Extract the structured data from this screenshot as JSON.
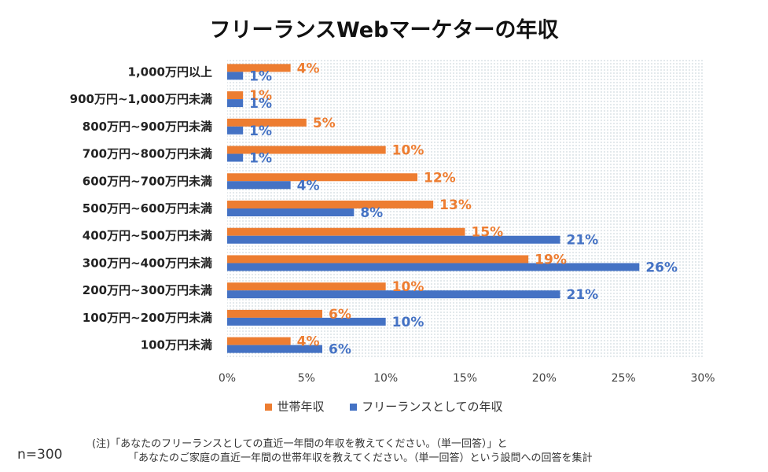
{
  "title": "フリーランスWebマーケターの年収",
  "colors": {
    "household": "#ED7D31",
    "freelance": "#4472C4"
  },
  "legend": {
    "household": "世帯年収",
    "freelance": "フリーランスとしての年収"
  },
  "footer": {
    "n": "n=300",
    "note_line1": "(注)「あなたのフリーランスとしての直近一年間の年収を教えてください。（単一回答）」と",
    "note_line2": "「あなたのご家庭の直近一年間の世帯年収を教えてください。（単一回答）という設問への回答を集計"
  },
  "chart_data": {
    "type": "bar",
    "orientation": "horizontal",
    "title": "フリーランスWebマーケターの年収",
    "categories": [
      "1,000万円以上",
      "900万円~1,000万円未満",
      "800万円~900万円未満",
      "700万円~800万円未満",
      "600万円~700万円未満",
      "500万円~600万円未満",
      "400万円~500万円未満",
      "300万円~400万円未満",
      "200万円~300万円未満",
      "100万円~200万円未満",
      "100万円未満"
    ],
    "series": [
      {
        "name": "世帯年収",
        "values": [
          4,
          1,
          5,
          10,
          12,
          13,
          15,
          19,
          10,
          6,
          4
        ]
      },
      {
        "name": "フリーランスとしての年収",
        "values": [
          1,
          1,
          1,
          1,
          4,
          8,
          21,
          26,
          21,
          10,
          6
        ]
      }
    ],
    "xlim": [
      0,
      30
    ],
    "xticks": [
      "0%",
      "5%",
      "10%",
      "15%",
      "20%",
      "25%",
      "30%"
    ],
    "value_suffix": "%",
    "legend_position": "bottom"
  }
}
